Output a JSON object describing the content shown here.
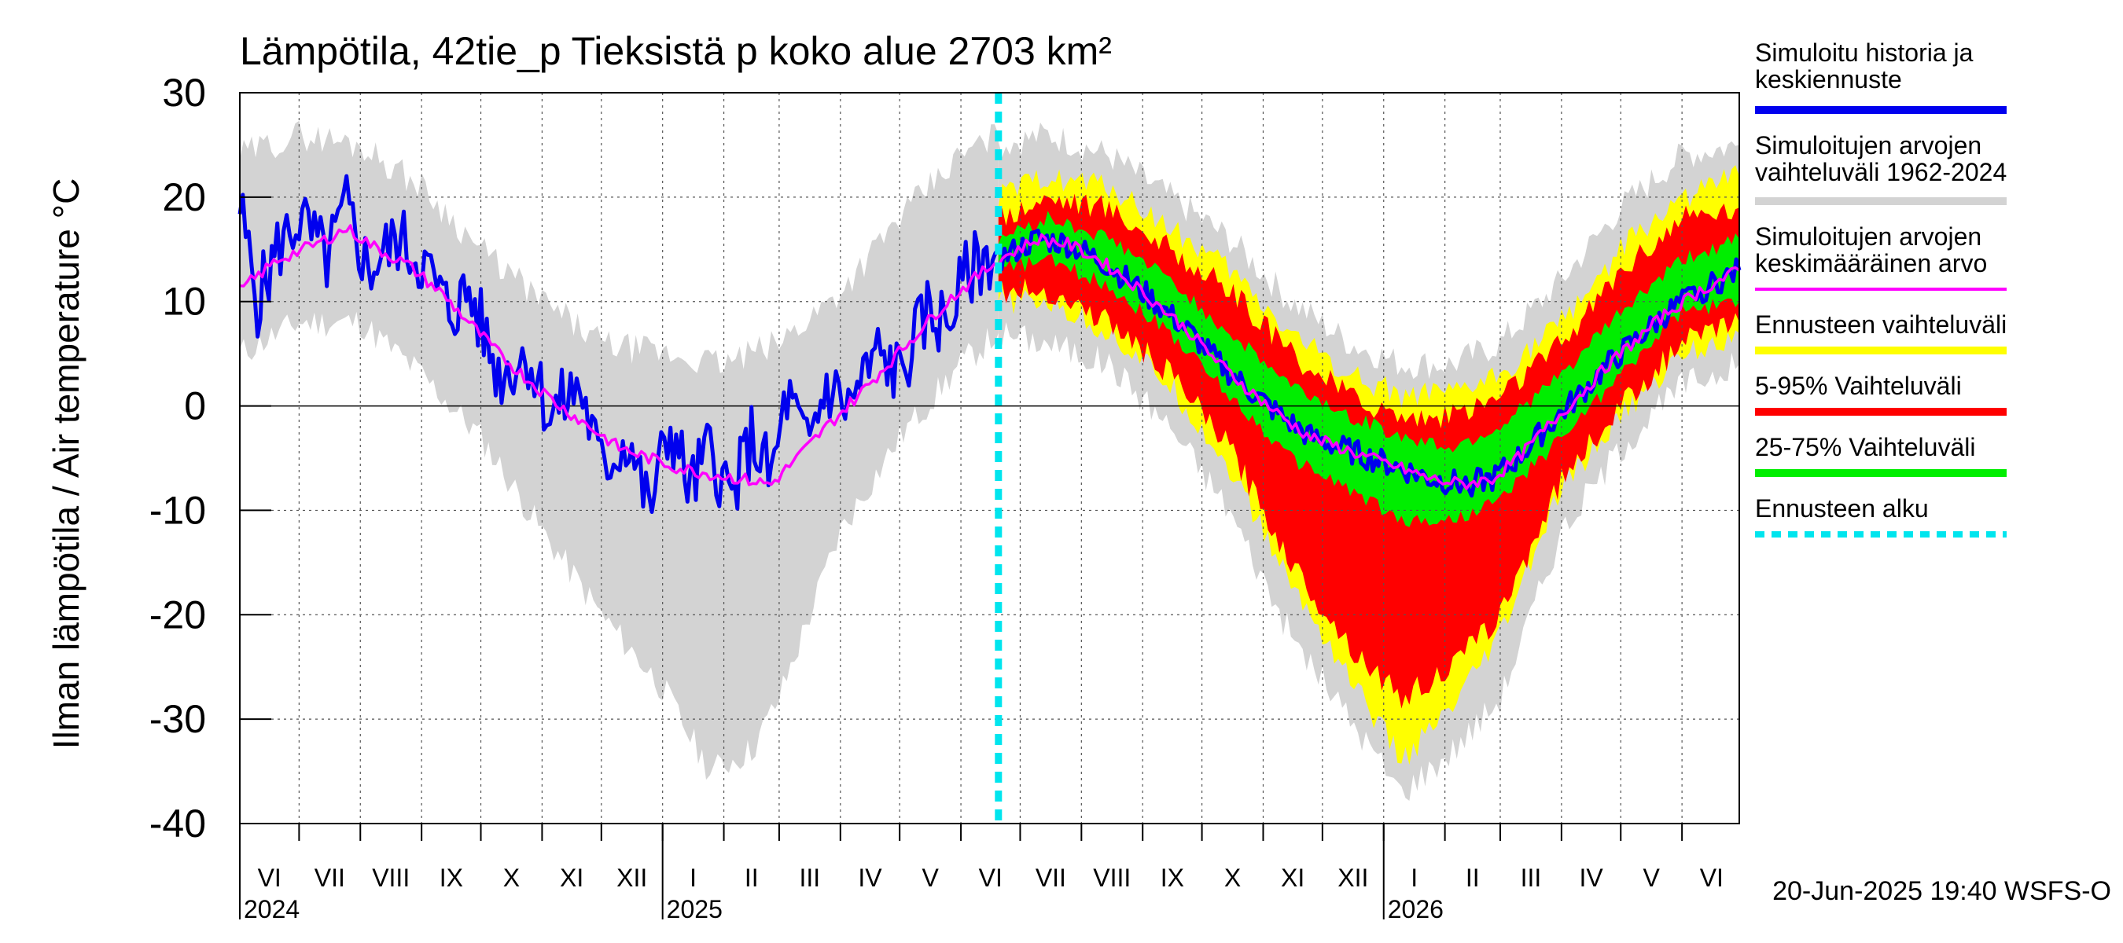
{
  "chart_data": {
    "type": "area",
    "title": "Lämpötila, 42tie_p Tieksistä p koko alue 2703 km²",
    "ylabel": "Ilman lämpötila / Air temperature    °C",
    "ylim": [
      -40,
      30
    ],
    "yticks": [
      30,
      20,
      10,
      0,
      -10,
      -20,
      -30,
      -40
    ],
    "grid": true,
    "legend_placement": "right",
    "x_start": "2024-06-01",
    "x_end": "2026-06-30",
    "forecast_start": "2025-06-20",
    "months": [
      "VI",
      "VII",
      "VIII",
      "IX",
      "X",
      "XI",
      "XII",
      "I",
      "II",
      "III",
      "IV",
      "V",
      "VI",
      "VII",
      "VIII",
      "IX",
      "X",
      "XI",
      "XII",
      "I",
      "II",
      "III",
      "IV",
      "V",
      "VI"
    ],
    "years": [
      {
        "label": "2024",
        "date": "2024-06-01"
      },
      {
        "label": "2025",
        "date": "2025-01-01"
      },
      {
        "label": "2026",
        "date": "2026-01-01"
      }
    ],
    "history_mean": [
      {
        "date": "2024-06-01",
        "value": 11
      },
      {
        "date": "2024-06-20",
        "value": 14
      },
      {
        "date": "2024-07-10",
        "value": 15.5
      },
      {
        "date": "2024-07-25",
        "value": 17
      },
      {
        "date": "2024-08-10",
        "value": 15
      },
      {
        "date": "2024-08-25",
        "value": 13.5
      },
      {
        "date": "2024-09-10",
        "value": 11
      },
      {
        "date": "2024-09-25",
        "value": 8
      },
      {
        "date": "2024-10-10",
        "value": 5
      },
      {
        "date": "2024-10-25",
        "value": 2.5
      },
      {
        "date": "2024-11-10",
        "value": 0
      },
      {
        "date": "2024-11-25",
        "value": -2
      },
      {
        "date": "2024-12-10",
        "value": -4
      },
      {
        "date": "2024-12-25",
        "value": -5
      },
      {
        "date": "2025-01-10",
        "value": -6
      },
      {
        "date": "2025-01-25",
        "value": -6.5
      },
      {
        "date": "2025-02-10",
        "value": -7
      },
      {
        "date": "2025-02-25",
        "value": -7.5
      },
      {
        "date": "2025-03-10",
        "value": -5
      },
      {
        "date": "2025-03-25",
        "value": -2
      },
      {
        "date": "2025-04-10",
        "value": 1
      },
      {
        "date": "2025-04-25",
        "value": 4
      },
      {
        "date": "2025-05-10",
        "value": 7
      },
      {
        "date": "2025-05-25",
        "value": 10
      },
      {
        "date": "2025-06-10",
        "value": 12.5
      },
      {
        "date": "2025-06-20",
        "value": 14
      }
    ],
    "history_range_low": [
      {
        "date": "2024-06-01",
        "value": 5
      },
      {
        "date": "2024-07-01",
        "value": 8
      },
      {
        "date": "2024-08-01",
        "value": 8
      },
      {
        "date": "2024-09-01",
        "value": 3
      },
      {
        "date": "2024-10-01",
        "value": -3
      },
      {
        "date": "2024-11-01",
        "value": -12
      },
      {
        "date": "2024-12-01",
        "value": -20
      },
      {
        "date": "2025-01-01",
        "value": -27
      },
      {
        "date": "2025-01-25",
        "value": -35
      },
      {
        "date": "2025-02-15",
        "value": -33
      },
      {
        "date": "2025-03-01",
        "value": -28
      },
      {
        "date": "2025-04-01",
        "value": -12
      },
      {
        "date": "2025-05-01",
        "value": -3
      },
      {
        "date": "2025-06-01",
        "value": 4
      },
      {
        "date": "2025-06-20",
        "value": 7
      }
    ],
    "history_range_high": [
      {
        "date": "2024-06-01",
        "value": 24
      },
      {
        "date": "2024-07-01",
        "value": 26
      },
      {
        "date": "2024-08-01",
        "value": 25
      },
      {
        "date": "2024-09-01",
        "value": 21
      },
      {
        "date": "2024-10-01",
        "value": 15
      },
      {
        "date": "2024-11-01",
        "value": 10
      },
      {
        "date": "2024-12-01",
        "value": 6
      },
      {
        "date": "2025-01-01",
        "value": 5
      },
      {
        "date": "2025-02-01",
        "value": 4
      },
      {
        "date": "2025-03-01",
        "value": 6
      },
      {
        "date": "2025-04-01",
        "value": 11
      },
      {
        "date": "2025-05-01",
        "value": 18
      },
      {
        "date": "2025-06-01",
        "value": 24
      },
      {
        "date": "2025-06-20",
        "value": 26
      }
    ],
    "history_simulated": [
      {
        "date": "2024-06-01",
        "value": 19
      },
      {
        "date": "2024-06-10",
        "value": 10
      },
      {
        "date": "2024-06-20",
        "value": 15
      },
      {
        "date": "2024-07-01",
        "value": 18
      },
      {
        "date": "2024-07-15",
        "value": 14
      },
      {
        "date": "2024-07-25",
        "value": 19
      },
      {
        "date": "2024-08-05",
        "value": 13
      },
      {
        "date": "2024-08-20",
        "value": 16
      },
      {
        "date": "2024-09-01",
        "value": 14
      },
      {
        "date": "2024-09-15",
        "value": 9
      },
      {
        "date": "2024-09-25",
        "value": 11
      },
      {
        "date": "2024-10-10",
        "value": 3
      },
      {
        "date": "2024-10-25",
        "value": 5
      },
      {
        "date": "2024-11-05",
        "value": -1
      },
      {
        "date": "2024-11-20",
        "value": 2
      },
      {
        "date": "2024-12-01",
        "value": -6
      },
      {
        "date": "2024-12-15",
        "value": -3
      },
      {
        "date": "2024-12-25",
        "value": -10
      },
      {
        "date": "2025-01-05",
        "value": -2
      },
      {
        "date": "2025-01-15",
        "value": -8
      },
      {
        "date": "2025-01-25",
        "value": -4
      },
      {
        "date": "2025-02-05",
        "value": -9
      },
      {
        "date": "2025-02-15",
        "value": -3
      },
      {
        "date": "2025-02-25",
        "value": -7
      },
      {
        "date": "2025-03-05",
        "value": 1
      },
      {
        "date": "2025-03-15",
        "value": -4
      },
      {
        "date": "2025-03-25",
        "value": 2
      },
      {
        "date": "2025-04-05",
        "value": 0
      },
      {
        "date": "2025-04-20",
        "value": 5
      },
      {
        "date": "2025-05-01",
        "value": 3
      },
      {
        "date": "2025-05-15",
        "value": 9
      },
      {
        "date": "2025-05-25",
        "value": 8
      },
      {
        "date": "2025-06-05",
        "value": 13
      },
      {
        "date": "2025-06-20",
        "value": 15
      }
    ],
    "forecast_mean": [
      {
        "date": "2025-06-20",
        "value": 14
      },
      {
        "date": "2025-07-10",
        "value": 16
      },
      {
        "date": "2025-07-25",
        "value": 15.5
      },
      {
        "date": "2025-08-10",
        "value": 14
      },
      {
        "date": "2025-08-25",
        "value": 12
      },
      {
        "date": "2025-09-10",
        "value": 9.5
      },
      {
        "date": "2025-09-25",
        "value": 7
      },
      {
        "date": "2025-10-10",
        "value": 4
      },
      {
        "date": "2025-10-25",
        "value": 1.5
      },
      {
        "date": "2025-11-10",
        "value": -1
      },
      {
        "date": "2025-11-25",
        "value": -3
      },
      {
        "date": "2025-12-10",
        "value": -4
      },
      {
        "date": "2025-12-25",
        "value": -5
      },
      {
        "date": "2026-01-10",
        "value": -6
      },
      {
        "date": "2026-01-25",
        "value": -7
      },
      {
        "date": "2026-02-10",
        "value": -7.5
      },
      {
        "date": "2026-02-25",
        "value": -7
      },
      {
        "date": "2026-03-10",
        "value": -5
      },
      {
        "date": "2026-03-25",
        "value": -2
      },
      {
        "date": "2026-04-10",
        "value": 1
      },
      {
        "date": "2026-04-25",
        "value": 4
      },
      {
        "date": "2026-05-10",
        "value": 6.5
      },
      {
        "date": "2026-05-25",
        "value": 9
      },
      {
        "date": "2026-06-10",
        "value": 11
      },
      {
        "date": "2026-06-30",
        "value": 13
      }
    ],
    "forecast_bands": [
      {
        "date": "2025-06-20",
        "range_low": 10,
        "range_high": 20,
        "p5": 11,
        "p95": 18,
        "p25": 13,
        "p75": 16,
        "hist_low": 7,
        "hist_high": 25
      },
      {
        "date": "2025-07-15",
        "range_low": 10,
        "range_high": 22,
        "p5": 11,
        "p95": 20,
        "p25": 14,
        "p75": 18,
        "hist_low": 6,
        "hist_high": 26
      },
      {
        "date": "2025-08-15",
        "range_low": 7,
        "range_high": 21,
        "p5": 8,
        "p95": 19,
        "p25": 11.5,
        "p75": 16,
        "hist_low": 4,
        "hist_high": 24
      },
      {
        "date": "2025-09-15",
        "range_low": 2,
        "range_high": 17,
        "p5": 3,
        "p95": 15,
        "p25": 7,
        "p75": 12,
        "hist_low": -2,
        "hist_high": 20
      },
      {
        "date": "2025-10-15",
        "range_low": -6,
        "range_high": 13,
        "p5": -4,
        "p95": 11,
        "p25": 1,
        "p75": 7,
        "hist_low": -10,
        "hist_high": 16
      },
      {
        "date": "2025-11-15",
        "range_low": -17,
        "range_high": 7,
        "p5": -15,
        "p95": 5,
        "p25": -5,
        "p75": 2,
        "hist_low": -22,
        "hist_high": 10
      },
      {
        "date": "2025-12-15",
        "range_low": -26,
        "range_high": 3,
        "p5": -23,
        "p95": 1,
        "p25": -8,
        "p75": -1,
        "hist_low": -30,
        "hist_high": 6
      },
      {
        "date": "2026-01-10",
        "range_low": -34,
        "range_high": 1,
        "p5": -28,
        "p95": -1,
        "p25": -11,
        "p75": -3,
        "hist_low": -37,
        "hist_high": 4
      },
      {
        "date": "2026-02-05",
        "range_low": -29,
        "range_high": 1,
        "p5": -25,
        "p95": -1,
        "p25": -11,
        "p75": -4,
        "hist_low": -33,
        "hist_high": 4
      },
      {
        "date": "2026-03-01",
        "range_low": -22,
        "range_high": 3,
        "p5": -20,
        "p95": 1,
        "p25": -9,
        "p75": -2,
        "hist_low": -28,
        "hist_high": 6
      },
      {
        "date": "2026-04-01",
        "range_low": -8,
        "range_high": 8,
        "p5": -7,
        "p95": 6,
        "p25": -3,
        "p75": 3,
        "hist_low": -12,
        "hist_high": 12
      },
      {
        "date": "2026-05-01",
        "range_low": -1,
        "range_high": 15,
        "p5": 0,
        "p95": 13,
        "p25": 3,
        "p75": 9,
        "hist_low": -4,
        "hist_high": 19
      },
      {
        "date": "2026-06-01",
        "range_low": 5,
        "range_high": 20,
        "p5": 6,
        "p95": 18,
        "p25": 9,
        "p75": 14,
        "hist_low": 2,
        "hist_high": 24
      },
      {
        "date": "2026-06-30",
        "range_low": 7,
        "range_high": 22,
        "p5": 8,
        "p95": 19,
        "p25": 10,
        "p75": 16,
        "hist_low": 4,
        "hist_high": 25
      }
    ],
    "legend": [
      {
        "label": "Simuloitu historia ja keskiennuste",
        "color": "#0000ee",
        "style": "thick"
      },
      {
        "label": "Simuloitujen arvojen vaihteluväli 1962-2024",
        "color": "#d3d3d3",
        "style": "thick"
      },
      {
        "label": "Simuloitujen arvojen keskimääräinen arvo",
        "color": "#ff00ff",
        "style": "thin"
      },
      {
        "label": "Ennusteen vaihteluväli",
        "color": "#ffff00",
        "style": "thick"
      },
      {
        "label": "5-95% Vaihteluväli",
        "color": "#ff0000",
        "style": "thick"
      },
      {
        "label": "25-75% Vaihteluväli",
        "color": "#00ee00",
        "style": "thick"
      },
      {
        "label": "Ennusteen alku",
        "color": "#00e5ee",
        "style": "dashed"
      }
    ],
    "footer": "20-Jun-2025 19:40 WSFS-O"
  }
}
